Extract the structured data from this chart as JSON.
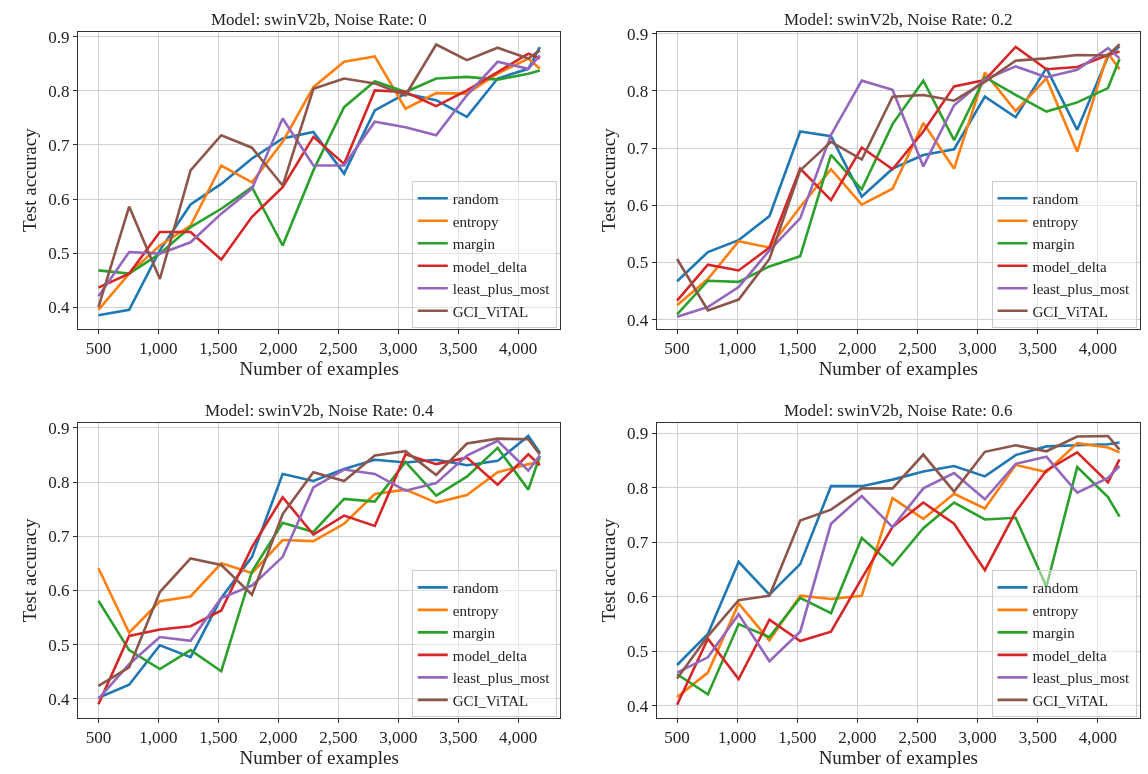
{
  "chart_data": [
    {
      "type": "line",
      "title": "Model: swinV2b, Noise Rate: 0",
      "xlabel": "Number of examples",
      "ylabel": "Test accuracy",
      "x": [
        500,
        756,
        1012,
        1268,
        1524,
        1780,
        2036,
        2292,
        2548,
        2804,
        3060,
        3316,
        3572,
        3828,
        4084,
        4180
      ],
      "xlim": [
        330,
        4350
      ],
      "ylim": [
        0.36,
        0.91
      ],
      "xticks": [
        500,
        {
          "value": 1000,
          "label": "1,000"
        },
        {
          "value": 1500,
          "label": "1,500"
        },
        {
          "value": 2000,
          "label": "2,000"
        },
        {
          "value": 2500,
          "label": "2,500"
        },
        {
          "value": 3000,
          "label": "3,000"
        },
        {
          "value": 3500,
          "label": "3,500"
        },
        {
          "value": 4000,
          "label": "4,000"
        }
      ],
      "yticks": [
        0.4,
        0.5,
        0.6,
        0.7,
        0.8,
        0.9
      ],
      "grid": true,
      "legend": "bottom right",
      "series": [
        {
          "name": "random",
          "color": "#1f77b4",
          "values": [
            0.385,
            0.395,
            0.505,
            0.59,
            0.628,
            0.675,
            0.712,
            0.724,
            0.647,
            0.764,
            0.795,
            0.783,
            0.752,
            0.823,
            0.841,
            0.881
          ]
        },
        {
          "name": "entropy",
          "color": "#ff7f0e",
          "values": [
            0.395,
            0.462,
            0.514,
            0.551,
            0.662,
            0.631,
            0.706,
            0.807,
            0.854,
            0.864,
            0.767,
            0.796,
            0.795,
            0.832,
            0.86,
            0.841
          ]
        },
        {
          "name": "margin",
          "color": "#2ca02c",
          "values": [
            0.468,
            0.462,
            0.499,
            0.548,
            0.582,
            0.622,
            0.514,
            0.653,
            0.77,
            0.818,
            0.798,
            0.823,
            0.826,
            0.821,
            0.832,
            0.838
          ]
        },
        {
          "name": "model_delta",
          "color": "#d62728",
          "values": [
            0.436,
            0.462,
            0.539,
            0.539,
            0.488,
            0.567,
            0.622,
            0.715,
            0.665,
            0.801,
            0.798,
            0.772,
            0.801,
            0.835,
            0.869,
            0.86
          ]
        },
        {
          "name": "least_plus_most",
          "color": "#9467bd",
          "values": [
            0.42,
            0.502,
            0.499,
            0.52,
            0.573,
            0.619,
            0.749,
            0.662,
            0.662,
            0.743,
            0.733,
            0.718,
            0.792,
            0.854,
            0.841,
            0.866
          ]
        },
        {
          "name": "GCI_ViTAL",
          "color": "#8c564b",
          "values": [
            0.4,
            0.586,
            0.452,
            0.653,
            0.718,
            0.695,
            0.625,
            0.804,
            0.823,
            0.814,
            0.792,
            0.886,
            0.857,
            0.88,
            0.86,
            0.875
          ]
        }
      ]
    },
    {
      "type": "line",
      "title": "Model: swinV2b, Noise Rate: 0.2",
      "xlabel": "Number of examples",
      "ylabel": "Test accuracy",
      "x": [
        500,
        756,
        1012,
        1268,
        1524,
        1780,
        2036,
        2292,
        2548,
        2804,
        3060,
        3316,
        3572,
        3828,
        4084,
        4180
      ],
      "xlim": [
        330,
        4350
      ],
      "ylim": [
        0.384,
        0.904
      ],
      "xticks": [
        500,
        {
          "value": 1000,
          "label": "1,000"
        },
        {
          "value": 1500,
          "label": "1,500"
        },
        {
          "value": 2000,
          "label": "2,000"
        },
        {
          "value": 2500,
          "label": "2,500"
        },
        {
          "value": 3000,
          "label": "3,000"
        },
        {
          "value": 3500,
          "label": "3,500"
        },
        {
          "value": 4000,
          "label": "4,000"
        }
      ],
      "yticks": [
        0.4,
        0.5,
        0.6,
        0.7,
        0.8,
        0.9
      ],
      "grid": true,
      "legend": "bottom right",
      "series": [
        {
          "name": "random",
          "color": "#1f77b4",
          "values": [
            0.467,
            0.518,
            0.539,
            0.581,
            0.729,
            0.721,
            0.615,
            0.664,
            0.688,
            0.698,
            0.79,
            0.754,
            0.84,
            0.732,
            0.86,
            0.878
          ]
        },
        {
          "name": "entropy",
          "color": "#ff7f0e",
          "values": [
            0.425,
            0.471,
            0.537,
            0.526,
            0.597,
            0.663,
            0.601,
            0.629,
            0.744,
            0.664,
            0.832,
            0.765,
            0.822,
            0.694,
            0.866,
            0.838
          ]
        },
        {
          "name": "margin",
          "color": "#2ca02c",
          "values": [
            0.409,
            0.468,
            0.466,
            0.493,
            0.511,
            0.688,
            0.628,
            0.742,
            0.818,
            0.714,
            0.824,
            0.793,
            0.764,
            0.78,
            0.805,
            0.856
          ]
        },
        {
          "name": "model_delta",
          "color": "#d62728",
          "values": [
            0.433,
            0.496,
            0.486,
            0.526,
            0.664,
            0.609,
            0.701,
            0.663,
            0.729,
            0.808,
            0.819,
            0.877,
            0.838,
            0.842,
            0.863,
            0.869
          ]
        },
        {
          "name": "least_plus_most",
          "color": "#9467bd",
          "values": [
            0.405,
            0.422,
            0.457,
            0.521,
            0.577,
            0.723,
            0.818,
            0.802,
            0.668,
            0.775,
            0.82,
            0.843,
            0.824,
            0.837,
            0.875,
            0.857
          ]
        },
        {
          "name": "GCI_ViTAL",
          "color": "#8c564b",
          "values": [
            0.506,
            0.416,
            0.435,
            0.506,
            0.661,
            0.711,
            0.68,
            0.79,
            0.793,
            0.783,
            0.816,
            0.853,
            0.857,
            0.863,
            0.862,
            0.882
          ]
        }
      ]
    },
    {
      "type": "line",
      "title": "Model: swinV2b, Noise Rate: 0.4",
      "xlabel": "Number of examples",
      "ylabel": "Test accuracy",
      "x": [
        500,
        756,
        1012,
        1268,
        1524,
        1780,
        2036,
        2292,
        2548,
        2804,
        3060,
        3316,
        3572,
        3828,
        4084,
        4180
      ],
      "xlim": [
        330,
        4350
      ],
      "ylim": [
        0.365,
        0.909
      ],
      "xticks": [
        500,
        {
          "value": 1000,
          "label": "1,000"
        },
        {
          "value": 1500,
          "label": "1,500"
        },
        {
          "value": 2000,
          "label": "2,000"
        },
        {
          "value": 2500,
          "label": "2,500"
        },
        {
          "value": 3000,
          "label": "3,000"
        },
        {
          "value": 3500,
          "label": "3,500"
        },
        {
          "value": 4000,
          "label": "4,000"
        }
      ],
      "yticks": [
        0.4,
        0.5,
        0.6,
        0.7,
        0.8,
        0.9
      ],
      "grid": true,
      "legend": "bottom right",
      "series": [
        {
          "name": "random",
          "color": "#1f77b4",
          "values": [
            0.402,
            0.426,
            0.499,
            0.477,
            0.586,
            0.662,
            0.815,
            0.802,
            0.824,
            0.841,
            0.836,
            0.841,
            0.831,
            0.839,
            0.885,
            0.854
          ]
        },
        {
          "name": "entropy",
          "color": "#ff7f0e",
          "values": [
            0.641,
            0.522,
            0.58,
            0.589,
            0.65,
            0.632,
            0.693,
            0.691,
            0.723,
            0.778,
            0.786,
            0.762,
            0.776,
            0.818,
            0.833,
            0.836
          ]
        },
        {
          "name": "margin",
          "color": "#2ca02c",
          "values": [
            0.581,
            0.49,
            0.455,
            0.49,
            0.451,
            0.635,
            0.725,
            0.708,
            0.769,
            0.764,
            0.837,
            0.775,
            0.81,
            0.863,
            0.786,
            0.848
          ]
        },
        {
          "name": "model_delta",
          "color": "#d62728",
          "values": [
            0.39,
            0.516,
            0.528,
            0.534,
            0.563,
            0.68,
            0.772,
            0.703,
            0.738,
            0.719,
            0.851,
            0.833,
            0.845,
            0.795,
            0.851,
            0.831
          ]
        },
        {
          "name": "least_plus_most",
          "color": "#9467bd",
          "values": [
            0.4,
            0.464,
            0.514,
            0.507,
            0.586,
            0.609,
            0.662,
            0.79,
            0.823,
            0.815,
            0.784,
            0.798,
            0.849,
            0.876,
            0.821,
            0.849
          ]
        },
        {
          "name": "GCI_ViTAL",
          "color": "#8c564b",
          "values": [
            0.424,
            0.458,
            0.597,
            0.659,
            0.647,
            0.592,
            0.741,
            0.818,
            0.802,
            0.849,
            0.857,
            0.813,
            0.871,
            0.88,
            0.879,
            0.851
          ]
        }
      ]
    },
    {
      "type": "line",
      "title": "Model: swinV2b, Noise Rate: 0.6",
      "xlabel": "Number of examples",
      "ylabel": "Test accuracy",
      "x": [
        500,
        756,
        1012,
        1268,
        1524,
        1780,
        2036,
        2292,
        2548,
        2804,
        3060,
        3316,
        3572,
        3828,
        4084,
        4180
      ],
      "xlim": [
        330,
        4350
      ],
      "ylim": [
        0.378,
        0.919
      ],
      "xticks": [
        500,
        {
          "value": 1000,
          "label": "1,000"
        },
        {
          "value": 1500,
          "label": "1,500"
        },
        {
          "value": 2000,
          "label": "2,000"
        },
        {
          "value": 2500,
          "label": "2,500"
        },
        {
          "value": 3000,
          "label": "3,000"
        },
        {
          "value": 3500,
          "label": "3,500"
        },
        {
          "value": 4000,
          "label": "4,000"
        }
      ],
      "yticks": [
        0.4,
        0.5,
        0.6,
        0.7,
        0.8,
        0.9
      ],
      "grid": true,
      "legend": "bottom right",
      "series": [
        {
          "name": "random",
          "color": "#1f77b4",
          "values": [
            0.475,
            0.532,
            0.664,
            0.604,
            0.66,
            0.803,
            0.803,
            0.815,
            0.83,
            0.84,
            0.821,
            0.86,
            0.876,
            0.878,
            0.88,
            0.883
          ]
        },
        {
          "name": "entropy",
          "color": "#ff7f0e",
          "values": [
            0.416,
            0.461,
            0.588,
            0.52,
            0.602,
            0.596,
            0.602,
            0.781,
            0.743,
            0.789,
            0.762,
            0.842,
            0.829,
            0.882,
            0.874,
            0.865
          ]
        },
        {
          "name": "margin",
          "color": "#2ca02c",
          "values": [
            0.458,
            0.421,
            0.55,
            0.526,
            0.598,
            0.57,
            0.708,
            0.658,
            0.726,
            0.773,
            0.742,
            0.745,
            0.619,
            0.838,
            0.783,
            0.747
          ]
        },
        {
          "name": "model_delta",
          "color": "#d62728",
          "values": [
            0.402,
            0.523,
            0.449,
            0.558,
            0.519,
            0.536,
            0.634,
            0.728,
            0.773,
            0.734,
            0.649,
            0.756,
            0.832,
            0.865,
            0.81,
            0.852
          ]
        },
        {
          "name": "least_plus_most",
          "color": "#9467bd",
          "values": [
            0.461,
            0.489,
            0.568,
            0.482,
            0.536,
            0.734,
            0.785,
            0.728,
            0.799,
            0.827,
            0.779,
            0.844,
            0.857,
            0.791,
            0.818,
            0.84
          ]
        },
        {
          "name": "GCI_ViTAL",
          "color": "#8c564b",
          "values": [
            0.45,
            0.528,
            0.594,
            0.602,
            0.74,
            0.76,
            0.799,
            0.799,
            0.861,
            0.793,
            0.866,
            0.878,
            0.867,
            0.894,
            0.895,
            0.87
          ]
        }
      ]
    }
  ]
}
